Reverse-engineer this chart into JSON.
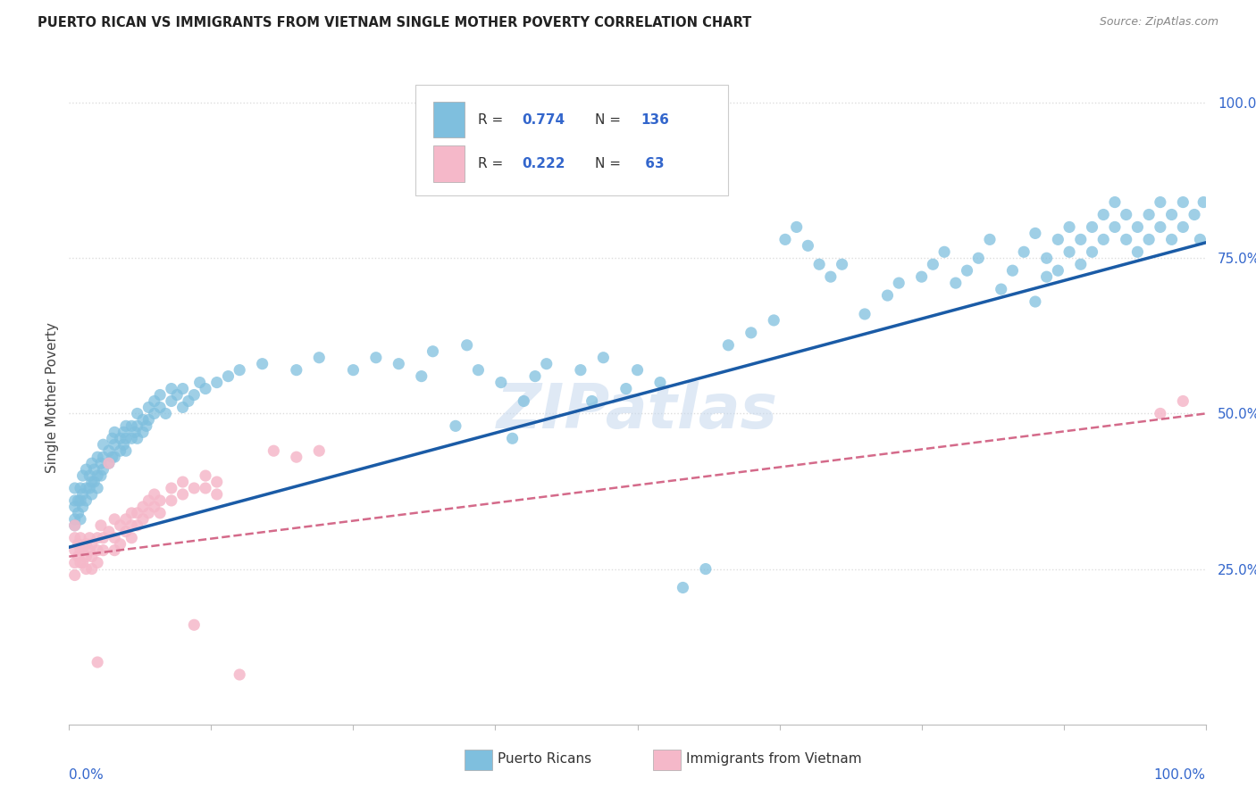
{
  "title": "PUERTO RICAN VS IMMIGRANTS FROM VIETNAM SINGLE MOTHER POVERTY CORRELATION CHART",
  "source": "Source: ZipAtlas.com",
  "ylabel": "Single Mother Poverty",
  "legend1_R": "0.774",
  "legend1_N": "136",
  "legend2_R": "0.222",
  "legend2_N": "63",
  "blue_color": "#7fbfde",
  "pink_color": "#f5b8c9",
  "blue_line_color": "#1a5ba6",
  "pink_line_color": "#d46a8a",
  "label_color": "#3366cc",
  "watermark": "ZIPatlas",
  "series1_label": "Puerto Ricans",
  "series2_label": "Immigrants from Vietnam",
  "blue_points": [
    [
      0.005,
      0.33
    ],
    [
      0.005,
      0.35
    ],
    [
      0.005,
      0.36
    ],
    [
      0.005,
      0.38
    ],
    [
      0.005,
      0.32
    ],
    [
      0.008,
      0.34
    ],
    [
      0.008,
      0.36
    ],
    [
      0.01,
      0.33
    ],
    [
      0.01,
      0.36
    ],
    [
      0.01,
      0.38
    ],
    [
      0.012,
      0.35
    ],
    [
      0.012,
      0.37
    ],
    [
      0.012,
      0.4
    ],
    [
      0.015,
      0.36
    ],
    [
      0.015,
      0.38
    ],
    [
      0.015,
      0.41
    ],
    [
      0.018,
      0.38
    ],
    [
      0.018,
      0.4
    ],
    [
      0.02,
      0.37
    ],
    [
      0.02,
      0.39
    ],
    [
      0.02,
      0.42
    ],
    [
      0.022,
      0.39
    ],
    [
      0.022,
      0.41
    ],
    [
      0.025,
      0.38
    ],
    [
      0.025,
      0.4
    ],
    [
      0.025,
      0.43
    ],
    [
      0.028,
      0.4
    ],
    [
      0.028,
      0.42
    ],
    [
      0.03,
      0.41
    ],
    [
      0.03,
      0.43
    ],
    [
      0.03,
      0.45
    ],
    [
      0.035,
      0.42
    ],
    [
      0.035,
      0.44
    ],
    [
      0.038,
      0.43
    ],
    [
      0.038,
      0.46
    ],
    [
      0.04,
      0.43
    ],
    [
      0.04,
      0.45
    ],
    [
      0.04,
      0.47
    ],
    [
      0.045,
      0.44
    ],
    [
      0.045,
      0.46
    ],
    [
      0.048,
      0.45
    ],
    [
      0.048,
      0.47
    ],
    [
      0.05,
      0.44
    ],
    [
      0.05,
      0.46
    ],
    [
      0.05,
      0.48
    ],
    [
      0.055,
      0.46
    ],
    [
      0.055,
      0.48
    ],
    [
      0.058,
      0.47
    ],
    [
      0.06,
      0.46
    ],
    [
      0.06,
      0.48
    ],
    [
      0.06,
      0.5
    ],
    [
      0.065,
      0.47
    ],
    [
      0.065,
      0.49
    ],
    [
      0.068,
      0.48
    ],
    [
      0.07,
      0.49
    ],
    [
      0.07,
      0.51
    ],
    [
      0.075,
      0.5
    ],
    [
      0.075,
      0.52
    ],
    [
      0.08,
      0.51
    ],
    [
      0.08,
      0.53
    ],
    [
      0.085,
      0.5
    ],
    [
      0.09,
      0.52
    ],
    [
      0.09,
      0.54
    ],
    [
      0.095,
      0.53
    ],
    [
      0.1,
      0.51
    ],
    [
      0.1,
      0.54
    ],
    [
      0.105,
      0.52
    ],
    [
      0.11,
      0.53
    ],
    [
      0.115,
      0.55
    ],
    [
      0.12,
      0.54
    ],
    [
      0.13,
      0.55
    ],
    [
      0.14,
      0.56
    ],
    [
      0.15,
      0.57
    ],
    [
      0.17,
      0.58
    ],
    [
      0.2,
      0.57
    ],
    [
      0.22,
      0.59
    ],
    [
      0.25,
      0.57
    ],
    [
      0.27,
      0.59
    ],
    [
      0.29,
      0.58
    ],
    [
      0.31,
      0.56
    ],
    [
      0.32,
      0.6
    ],
    [
      0.34,
      0.48
    ],
    [
      0.35,
      0.61
    ],
    [
      0.36,
      0.57
    ],
    [
      0.38,
      0.55
    ],
    [
      0.39,
      0.46
    ],
    [
      0.4,
      0.52
    ],
    [
      0.41,
      0.56
    ],
    [
      0.42,
      0.58
    ],
    [
      0.45,
      0.57
    ],
    [
      0.46,
      0.52
    ],
    [
      0.47,
      0.59
    ],
    [
      0.49,
      0.54
    ],
    [
      0.5,
      0.57
    ],
    [
      0.52,
      0.55
    ],
    [
      0.54,
      0.22
    ],
    [
      0.56,
      0.25
    ],
    [
      0.58,
      0.61
    ],
    [
      0.6,
      0.63
    ],
    [
      0.62,
      0.65
    ],
    [
      0.63,
      0.78
    ],
    [
      0.64,
      0.8
    ],
    [
      0.65,
      0.77
    ],
    [
      0.66,
      0.74
    ],
    [
      0.67,
      0.72
    ],
    [
      0.68,
      0.74
    ],
    [
      0.7,
      0.66
    ],
    [
      0.72,
      0.69
    ],
    [
      0.73,
      0.71
    ],
    [
      0.75,
      0.72
    ],
    [
      0.76,
      0.74
    ],
    [
      0.77,
      0.76
    ],
    [
      0.78,
      0.71
    ],
    [
      0.79,
      0.73
    ],
    [
      0.8,
      0.75
    ],
    [
      0.81,
      0.78
    ],
    [
      0.82,
      0.7
    ],
    [
      0.83,
      0.73
    ],
    [
      0.84,
      0.76
    ],
    [
      0.85,
      0.79
    ],
    [
      0.85,
      0.68
    ],
    [
      0.86,
      0.72
    ],
    [
      0.86,
      0.75
    ],
    [
      0.87,
      0.73
    ],
    [
      0.87,
      0.78
    ],
    [
      0.88,
      0.76
    ],
    [
      0.88,
      0.8
    ],
    [
      0.89,
      0.74
    ],
    [
      0.89,
      0.78
    ],
    [
      0.9,
      0.76
    ],
    [
      0.9,
      0.8
    ],
    [
      0.91,
      0.78
    ],
    [
      0.91,
      0.82
    ],
    [
      0.92,
      0.8
    ],
    [
      0.92,
      0.84
    ],
    [
      0.93,
      0.78
    ],
    [
      0.93,
      0.82
    ],
    [
      0.94,
      0.76
    ],
    [
      0.94,
      0.8
    ],
    [
      0.95,
      0.78
    ],
    [
      0.95,
      0.82
    ],
    [
      0.96,
      0.8
    ],
    [
      0.96,
      0.84
    ],
    [
      0.97,
      0.78
    ],
    [
      0.97,
      0.82
    ],
    [
      0.98,
      0.8
    ],
    [
      0.98,
      0.84
    ],
    [
      0.99,
      0.82
    ],
    [
      0.995,
      0.78
    ],
    [
      0.998,
      0.84
    ]
  ],
  "pink_points": [
    [
      0.005,
      0.3
    ],
    [
      0.005,
      0.32
    ],
    [
      0.005,
      0.28
    ],
    [
      0.005,
      0.26
    ],
    [
      0.005,
      0.24
    ],
    [
      0.008,
      0.29
    ],
    [
      0.008,
      0.27
    ],
    [
      0.01,
      0.3
    ],
    [
      0.01,
      0.28
    ],
    [
      0.01,
      0.26
    ],
    [
      0.012,
      0.28
    ],
    [
      0.012,
      0.26
    ],
    [
      0.015,
      0.29
    ],
    [
      0.015,
      0.27
    ],
    [
      0.015,
      0.25
    ],
    [
      0.018,
      0.3
    ],
    [
      0.018,
      0.28
    ],
    [
      0.02,
      0.29
    ],
    [
      0.02,
      0.27
    ],
    [
      0.02,
      0.25
    ],
    [
      0.025,
      0.3
    ],
    [
      0.025,
      0.28
    ],
    [
      0.025,
      0.26
    ],
    [
      0.025,
      0.1
    ],
    [
      0.028,
      0.32
    ],
    [
      0.03,
      0.3
    ],
    [
      0.03,
      0.28
    ],
    [
      0.035,
      0.42
    ],
    [
      0.035,
      0.31
    ],
    [
      0.04,
      0.33
    ],
    [
      0.04,
      0.3
    ],
    [
      0.04,
      0.28
    ],
    [
      0.045,
      0.32
    ],
    [
      0.045,
      0.29
    ],
    [
      0.05,
      0.33
    ],
    [
      0.05,
      0.31
    ],
    [
      0.055,
      0.34
    ],
    [
      0.055,
      0.32
    ],
    [
      0.055,
      0.3
    ],
    [
      0.06,
      0.34
    ],
    [
      0.06,
      0.32
    ],
    [
      0.065,
      0.35
    ],
    [
      0.065,
      0.33
    ],
    [
      0.07,
      0.36
    ],
    [
      0.07,
      0.34
    ],
    [
      0.075,
      0.37
    ],
    [
      0.075,
      0.35
    ],
    [
      0.08,
      0.36
    ],
    [
      0.08,
      0.34
    ],
    [
      0.09,
      0.38
    ],
    [
      0.09,
      0.36
    ],
    [
      0.1,
      0.39
    ],
    [
      0.1,
      0.37
    ],
    [
      0.11,
      0.38
    ],
    [
      0.11,
      0.16
    ],
    [
      0.12,
      0.4
    ],
    [
      0.12,
      0.38
    ],
    [
      0.13,
      0.39
    ],
    [
      0.13,
      0.37
    ],
    [
      0.15,
      0.08
    ],
    [
      0.18,
      0.44
    ],
    [
      0.2,
      0.43
    ],
    [
      0.22,
      0.44
    ],
    [
      0.96,
      0.5
    ],
    [
      0.98,
      0.52
    ]
  ],
  "blue_trend_x": [
    0.0,
    1.0
  ],
  "blue_trend_y": [
    0.285,
    0.775
  ],
  "pink_trend_x": [
    0.0,
    1.0
  ],
  "pink_trend_y": [
    0.27,
    0.5
  ],
  "xlim": [
    0.0,
    1.0
  ],
  "ylim": [
    0.0,
    1.05
  ],
  "background_color": "#ffffff",
  "grid_color": "#dddddd"
}
